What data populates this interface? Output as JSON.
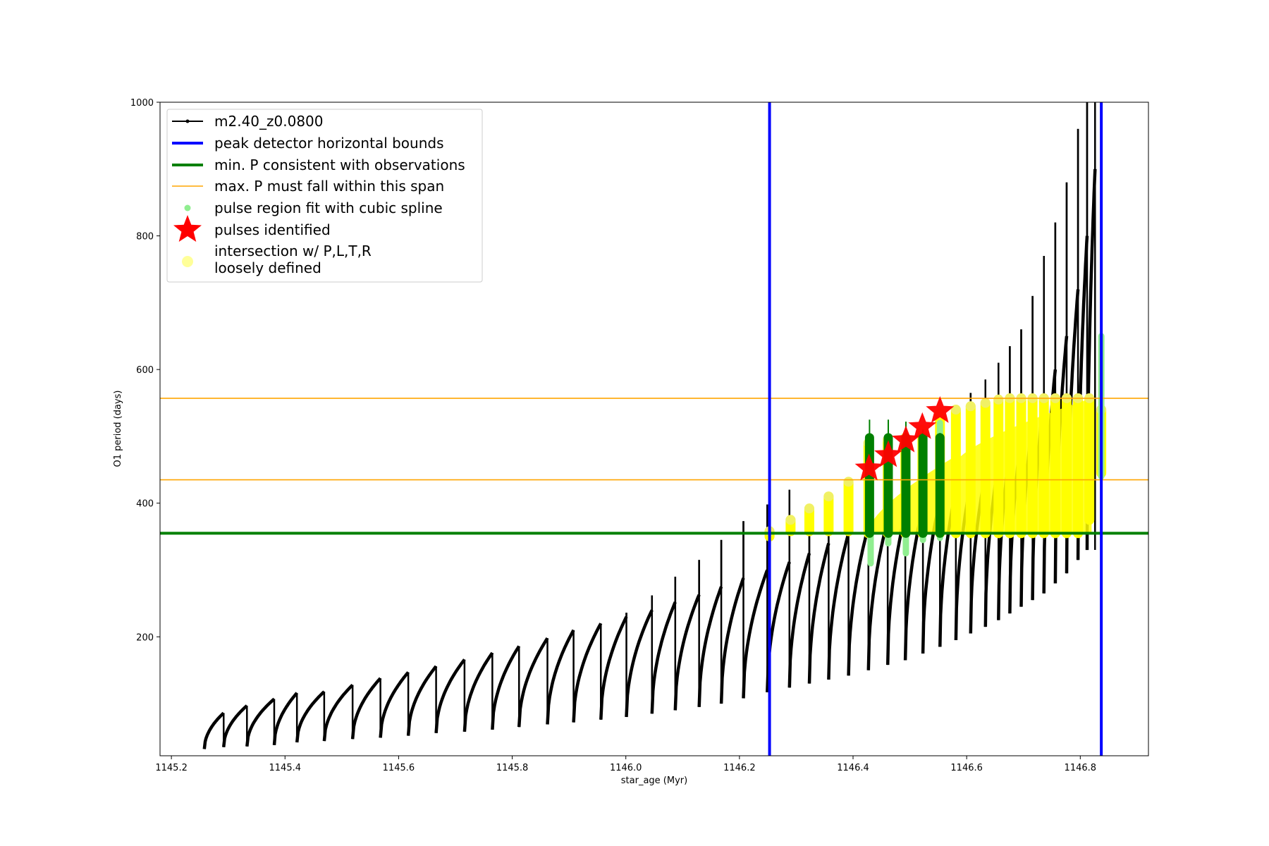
{
  "chart_data": {
    "type": "line",
    "title": "",
    "xlabel": "star_age (Myr)",
    "ylabel": "O1 period (days)",
    "xlim": [
      1145.18,
      1146.92
    ],
    "ylim": [
      22,
      1000
    ],
    "x_ticks": [
      1145.2,
      1145.4,
      1145.6,
      1145.8,
      1146.0,
      1146.2,
      1146.4,
      1146.6,
      1146.8
    ],
    "x_tick_labels": [
      "1145.2",
      "1145.4",
      "1145.6",
      "1145.8",
      "1146.0",
      "1146.2",
      "1146.4",
      "1146.6",
      "1146.8"
    ],
    "y_ticks": [
      200,
      400,
      600,
      800,
      1000
    ],
    "y_tick_labels": [
      "200",
      "400",
      "600",
      "800",
      "1000"
    ],
    "grid": false,
    "legend_position": "top-left",
    "legend": [
      {
        "label": "m2.40_z0.0800",
        "marker": "line-dots",
        "color": "#000000"
      },
      {
        "label": "peak detector horizontal bounds",
        "marker": "line",
        "color": "#0000ff"
      },
      {
        "label": "min. P consistent with observations",
        "marker": "line",
        "color": "#008000"
      },
      {
        "label": "max. P must fall within this span",
        "marker": "thin-line",
        "color": "#ffa500"
      },
      {
        "label": "pulse region fit with cubic spline",
        "marker": "dot",
        "color": "#90ee90"
      },
      {
        "label": "pulses identified",
        "marker": "star",
        "color": "#ff0000"
      },
      {
        "label": "intersection w/ P,L,T,R",
        "label2": "loosely defined",
        "marker": "big-dot",
        "color": "#ffff99"
      }
    ],
    "vertical_lines": [
      {
        "name": "peak detector horizontal bounds",
        "x": 1146.253,
        "color": "#0000ff"
      },
      {
        "name": "peak detector horizontal bounds",
        "x": 1146.837,
        "color": "#0000ff"
      }
    ],
    "horizontal_lines": [
      {
        "name": "min. P consistent with observations",
        "y": 355,
        "color": "#008000"
      },
      {
        "name": "max. P must fall within this span",
        "y": 435,
        "color": "#ffa500"
      },
      {
        "name": "max. P must fall within this span",
        "y": 557,
        "color": "#ffa500"
      }
    ],
    "series": [
      {
        "name": "m2.40_z0.0800",
        "color": "#000000",
        "pulse_cycles": [
          {
            "start": 1145.258,
            "end": 1145.292,
            "min": 32,
            "peak": 86,
            "spike": 77
          },
          {
            "start": 1145.292,
            "end": 1145.333,
            "min": 35,
            "peak": 97,
            "spike": 82
          },
          {
            "start": 1145.333,
            "end": 1145.381,
            "min": 36,
            "peak": 107,
            "spike": 88
          },
          {
            "start": 1145.381,
            "end": 1145.421,
            "min": 38,
            "peak": 116,
            "spike": 92
          },
          {
            "start": 1145.421,
            "end": 1145.469,
            "min": 42,
            "peak": 118,
            "spike": 96
          },
          {
            "start": 1145.469,
            "end": 1145.519,
            "min": 44,
            "peak": 128,
            "spike": 100
          },
          {
            "start": 1145.519,
            "end": 1145.568,
            "min": 47,
            "peak": 138,
            "spike": 104
          },
          {
            "start": 1145.568,
            "end": 1145.617,
            "min": 49,
            "peak": 147,
            "spike": 108
          },
          {
            "start": 1145.617,
            "end": 1145.666,
            "min": 52,
            "peak": 156,
            "spike": 112
          },
          {
            "start": 1145.666,
            "end": 1145.716,
            "min": 56,
            "peak": 166,
            "spike": 116
          },
          {
            "start": 1145.716,
            "end": 1145.765,
            "min": 58,
            "peak": 176,
            "spike": 130
          },
          {
            "start": 1145.765,
            "end": 1145.812,
            "min": 61,
            "peak": 186,
            "spike": 155
          },
          {
            "start": 1145.812,
            "end": 1145.862,
            "min": 65,
            "peak": 198,
            "spike": 172
          },
          {
            "start": 1145.862,
            "end": 1145.908,
            "min": 69,
            "peak": 210,
            "spike": 192
          },
          {
            "start": 1145.908,
            "end": 1145.956,
            "min": 72,
            "peak": 220,
            "spike": 210
          },
          {
            "start": 1145.956,
            "end": 1146.001,
            "min": 76,
            "peak": 230,
            "spike": 236
          },
          {
            "start": 1146.001,
            "end": 1146.046,
            "min": 80,
            "peak": 240,
            "spike": 262
          },
          {
            "start": 1146.046,
            "end": 1146.087,
            "min": 85,
            "peak": 252,
            "spike": 290
          },
          {
            "start": 1146.087,
            "end": 1146.129,
            "min": 90,
            "peak": 263,
            "spike": 315
          },
          {
            "start": 1146.129,
            "end": 1146.168,
            "min": 95,
            "peak": 275,
            "spike": 345
          },
          {
            "start": 1146.168,
            "end": 1146.207,
            "min": 100,
            "peak": 288,
            "spike": 373
          },
          {
            "start": 1146.207,
            "end": 1146.249,
            "min": 108,
            "peak": 300,
            "spike": 398
          },
          {
            "start": 1146.249,
            "end": 1146.288,
            "min": 117,
            "peak": 312,
            "spike": 420
          },
          {
            "start": 1146.288,
            "end": 1146.323,
            "min": 124,
            "peak": 325,
            "spike": 370
          },
          {
            "start": 1146.323,
            "end": 1146.357,
            "min": 130,
            "peak": 340,
            "spike": 390
          },
          {
            "start": 1146.357,
            "end": 1146.392,
            "min": 136,
            "peak": 355,
            "spike": 410
          },
          {
            "start": 1146.392,
            "end": 1146.427,
            "min": 142,
            "peak": 365,
            "spike": 430
          },
          {
            "start": 1146.427,
            "end": 1146.461,
            "min": 150,
            "peak": 375,
            "spike": 500
          },
          {
            "start": 1146.461,
            "end": 1146.492,
            "min": 158,
            "peak": 385,
            "spike": 505
          },
          {
            "start": 1146.492,
            "end": 1146.523,
            "min": 165,
            "peak": 395,
            "spike": 510
          },
          {
            "start": 1146.523,
            "end": 1146.553,
            "min": 175,
            "peak": 405,
            "spike": 520
          },
          {
            "start": 1146.553,
            "end": 1146.581,
            "min": 185,
            "peak": 420,
            "spike": 530
          },
          {
            "start": 1146.581,
            "end": 1146.607,
            "min": 195,
            "peak": 430,
            "spike": 565
          },
          {
            "start": 1146.607,
            "end": 1146.633,
            "min": 205,
            "peak": 445,
            "spike": 585
          },
          {
            "start": 1146.633,
            "end": 1146.656,
            "min": 215,
            "peak": 460,
            "spike": 610
          },
          {
            "start": 1146.656,
            "end": 1146.676,
            "min": 225,
            "peak": 480,
            "spike": 635
          },
          {
            "start": 1146.676,
            "end": 1146.696,
            "min": 235,
            "peak": 500,
            "spike": 660
          },
          {
            "start": 1146.696,
            "end": 1146.716,
            "min": 245,
            "peak": 525,
            "spike": 710
          },
          {
            "start": 1146.716,
            "end": 1146.736,
            "min": 255,
            "peak": 560,
            "spike": 770
          },
          {
            "start": 1146.736,
            "end": 1146.756,
            "min": 265,
            "peak": 600,
            "spike": 820
          },
          {
            "start": 1146.756,
            "end": 1146.776,
            "min": 280,
            "peak": 650,
            "spike": 880
          },
          {
            "start": 1146.776,
            "end": 1146.796,
            "min": 295,
            "peak": 720,
            "spike": 960
          },
          {
            "start": 1146.796,
            "end": 1146.812,
            "min": 315,
            "peak": 800,
            "spike": 1000
          },
          {
            "start": 1146.812,
            "end": 1146.826,
            "min": 330,
            "peak": 900,
            "spike": 1000
          }
        ]
      },
      {
        "name": "pulse region fit with cubic spline",
        "color": "#90ee90",
        "segments": [
          {
            "x": 1146.431,
            "y0": 310,
            "y1": 470
          },
          {
            "x": 1146.462,
            "y0": 340,
            "y1": 480
          },
          {
            "x": 1146.493,
            "y0": 325,
            "y1": 475
          },
          {
            "x": 1146.523,
            "y0": 345,
            "y1": 500
          },
          {
            "x": 1146.553,
            "y0": 348,
            "y1": 520
          },
          {
            "x": 1146.837,
            "y0": 440,
            "y1": 650
          }
        ]
      },
      {
        "name": "pulses identified",
        "color": "#ff0000",
        "points": [
          {
            "x": 1146.428,
            "y": 452
          },
          {
            "x": 1146.462,
            "y": 472
          },
          {
            "x": 1146.493,
            "y": 494
          },
          {
            "x": 1146.522,
            "y": 514
          },
          {
            "x": 1146.553,
            "y": 538
          }
        ]
      },
      {
        "name": "intersection w/ P,L,T,R",
        "name2": "loosely defined",
        "color": "#ffff00",
        "columns": [
          {
            "x": 1146.253,
            "y0": 350,
            "y1": 358
          },
          {
            "x": 1146.29,
            "y0": 358,
            "y1": 375
          },
          {
            "x": 1146.323,
            "y0": 358,
            "y1": 392
          },
          {
            "x": 1146.357,
            "y0": 358,
            "y1": 410
          },
          {
            "x": 1146.392,
            "y0": 358,
            "y1": 432
          },
          {
            "x": 1146.427,
            "y0": 355,
            "y1": 490
          },
          {
            "x": 1146.461,
            "y0": 355,
            "y1": 495
          },
          {
            "x": 1146.492,
            "y0": 355,
            "y1": 498
          },
          {
            "x": 1146.522,
            "y0": 355,
            "y1": 510
          },
          {
            "x": 1146.553,
            "y0": 355,
            "y1": 535
          },
          {
            "x": 1146.581,
            "y0": 355,
            "y1": 540
          },
          {
            "x": 1146.607,
            "y0": 355,
            "y1": 545
          },
          {
            "x": 1146.633,
            "y0": 355,
            "y1": 550
          },
          {
            "x": 1146.656,
            "y0": 355,
            "y1": 555
          },
          {
            "x": 1146.676,
            "y0": 355,
            "y1": 557
          },
          {
            "x": 1146.696,
            "y0": 355,
            "y1": 557
          },
          {
            "x": 1146.716,
            "y0": 355,
            "y1": 557
          },
          {
            "x": 1146.736,
            "y0": 355,
            "y1": 557
          },
          {
            "x": 1146.756,
            "y0": 355,
            "y1": 557
          },
          {
            "x": 1146.776,
            "y0": 355,
            "y1": 557
          },
          {
            "x": 1146.796,
            "y0": 355,
            "y1": 557
          },
          {
            "x": 1146.816,
            "y0": 375,
            "y1": 557
          },
          {
            "x": 1146.837,
            "y0": 445,
            "y1": 540
          }
        ],
        "fill_regions": [
          {
            "x0": 1146.427,
            "x1": 1146.58,
            "top_start": 360,
            "top_end": 470
          },
          {
            "x0": 1146.58,
            "x1": 1146.82,
            "top_start": 460,
            "top_end": 557
          }
        ]
      },
      {
        "name": "min. P consistent with observations",
        "color": "#008000",
        "bars": [
          {
            "x": 1146.429,
            "y0": 355,
            "y1": 498,
            "whisker": 525
          },
          {
            "x": 1146.462,
            "y0": 355,
            "y1": 498,
            "whisker": 525
          },
          {
            "x": 1146.493,
            "y0": 355,
            "y1": 498,
            "whisker": 522
          },
          {
            "x": 1146.523,
            "y0": 355,
            "y1": 498,
            "whisker": 510
          },
          {
            "x": 1146.553,
            "y0": 355,
            "y1": 498,
            "whisker": 505
          }
        ]
      }
    ]
  }
}
